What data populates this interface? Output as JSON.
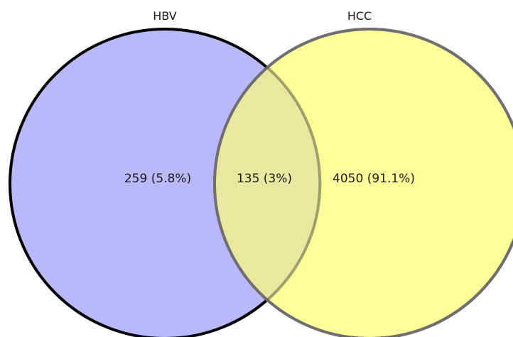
{
  "sets": [
    {
      "label": "HBV",
      "fill": "#b8b8fa",
      "stroke": "#000000"
    },
    {
      "label": "HCC",
      "fill": "#ffff99",
      "stroke": "#6f6f6f"
    }
  ],
  "intersection_fill": "#e8e8a0",
  "regions": {
    "hbv_only": "259 (5.8%)",
    "overlap": "135 (3%)",
    "hcc_only": "4050 (91.1%)"
  }
}
